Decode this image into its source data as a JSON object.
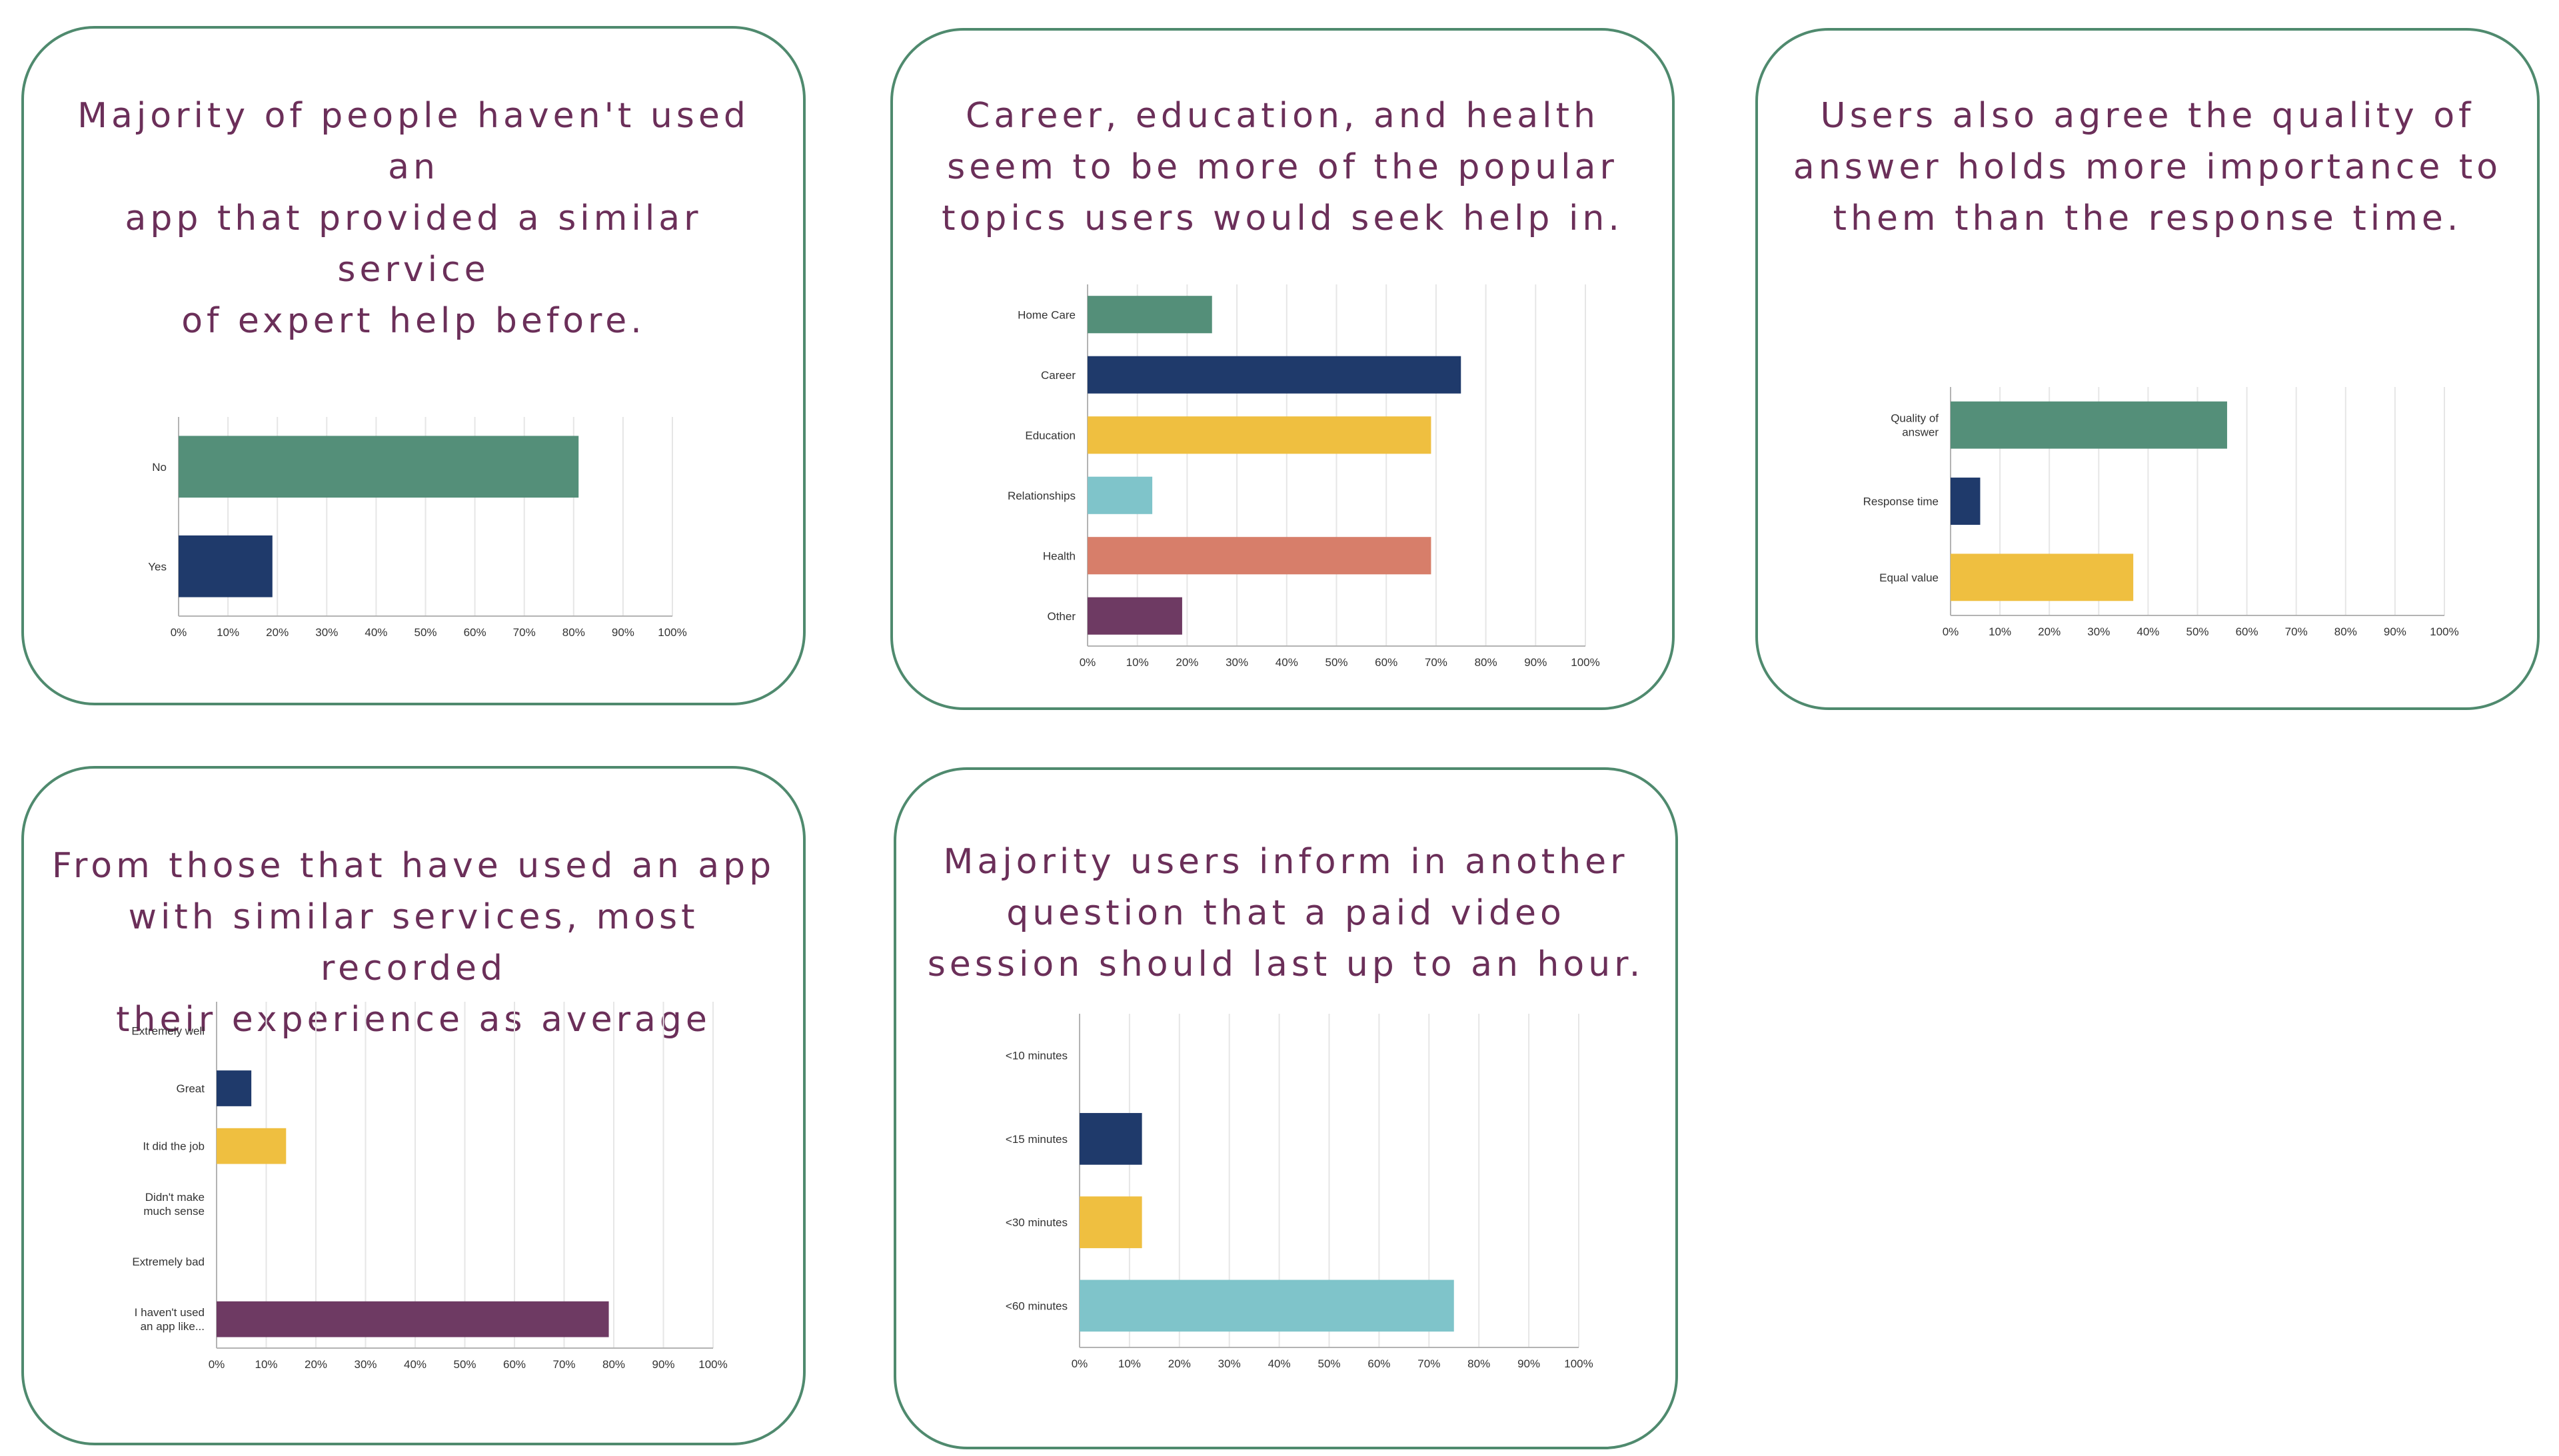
{
  "colors": {
    "border": "#4f8a6e",
    "title": "#6b2f59",
    "green": "#548f79",
    "navy": "#1f3a6b",
    "yellow": "#efbf40",
    "teal": "#7fc4ca",
    "salmon": "#d77e6a",
    "purple": "#6e3a63",
    "grid": "#e6e6e6",
    "axis": "#b3b3b3"
  },
  "cards": [
    {
      "title": "Majority of people haven't used an\napp that provided a similar service\nof expert help before."
    },
    {
      "title": "Career, education, and health\nseem to be more of the popular\ntopics users would seek help in."
    },
    {
      "title": "Users also agree the quality of\nanswer holds more importance to\nthem than the response time."
    },
    {
      "title": "From those that have used an app\nwith similar services, most recorded\ntheir experience as average"
    },
    {
      "title": "Majority users inform in another\nquestion that a paid video\nsession should last up to an hour."
    }
  ],
  "chart_data": [
    {
      "type": "bar",
      "orientation": "horizontal",
      "categories": [
        "No",
        "Yes"
      ],
      "values": [
        81,
        19
      ],
      "colors": [
        "#548f79",
        "#1f3a6b"
      ],
      "xlim": [
        0,
        100
      ],
      "xticks": [
        "0%",
        "10%",
        "20%",
        "30%",
        "40%",
        "50%",
        "60%",
        "70%",
        "80%",
        "90%",
        "100%"
      ],
      "grid": true
    },
    {
      "type": "bar",
      "orientation": "horizontal",
      "categories": [
        "Home Care",
        "Career",
        "Education",
        "Relationships",
        "Health",
        "Other"
      ],
      "values": [
        25,
        75,
        69,
        13,
        69,
        19
      ],
      "colors": [
        "#548f79",
        "#1f3a6b",
        "#efbf40",
        "#7fc4ca",
        "#d77e6a",
        "#6e3a63"
      ],
      "xlim": [
        0,
        100
      ],
      "xticks": [
        "0%",
        "10%",
        "20%",
        "30%",
        "40%",
        "50%",
        "60%",
        "70%",
        "80%",
        "90%",
        "100%"
      ],
      "grid": true
    },
    {
      "type": "bar",
      "orientation": "horizontal",
      "categories": [
        "Quality of\nanswer",
        "Response time",
        "Equal value"
      ],
      "values": [
        56,
        6,
        37
      ],
      "colors": [
        "#548f79",
        "#1f3a6b",
        "#efbf40"
      ],
      "xlim": [
        0,
        100
      ],
      "xticks": [
        "0%",
        "10%",
        "20%",
        "30%",
        "40%",
        "50%",
        "60%",
        "70%",
        "80%",
        "90%",
        "100%"
      ],
      "grid": true
    },
    {
      "type": "bar",
      "orientation": "horizontal",
      "categories": [
        "Extremely well",
        "Great",
        "It did the job",
        "Didn't make\nmuch sense",
        "Extremely bad",
        "I haven't used\nan app like..."
      ],
      "values": [
        0,
        7,
        14,
        0,
        0,
        79
      ],
      "colors": [
        "#548f79",
        "#1f3a6b",
        "#efbf40",
        "#7fc4ca",
        "#d77e6a",
        "#6e3a63"
      ],
      "xlim": [
        0,
        100
      ],
      "xticks": [
        "0%",
        "10%",
        "20%",
        "30%",
        "40%",
        "50%",
        "60%",
        "70%",
        "80%",
        "90%",
        "100%"
      ],
      "grid": true
    },
    {
      "type": "bar",
      "orientation": "horizontal",
      "categories": [
        "<10 minutes",
        "<15 minutes",
        "<30 minutes",
        "<60 minutes"
      ],
      "values": [
        0,
        12.5,
        12.5,
        75
      ],
      "colors": [
        "#548f79",
        "#1f3a6b",
        "#efbf40",
        "#7fc4ca"
      ],
      "xlim": [
        0,
        100
      ],
      "xticks": [
        "0%",
        "10%",
        "20%",
        "30%",
        "40%",
        "50%",
        "60%",
        "70%",
        "80%",
        "90%",
        "100%"
      ],
      "grid": true
    }
  ]
}
